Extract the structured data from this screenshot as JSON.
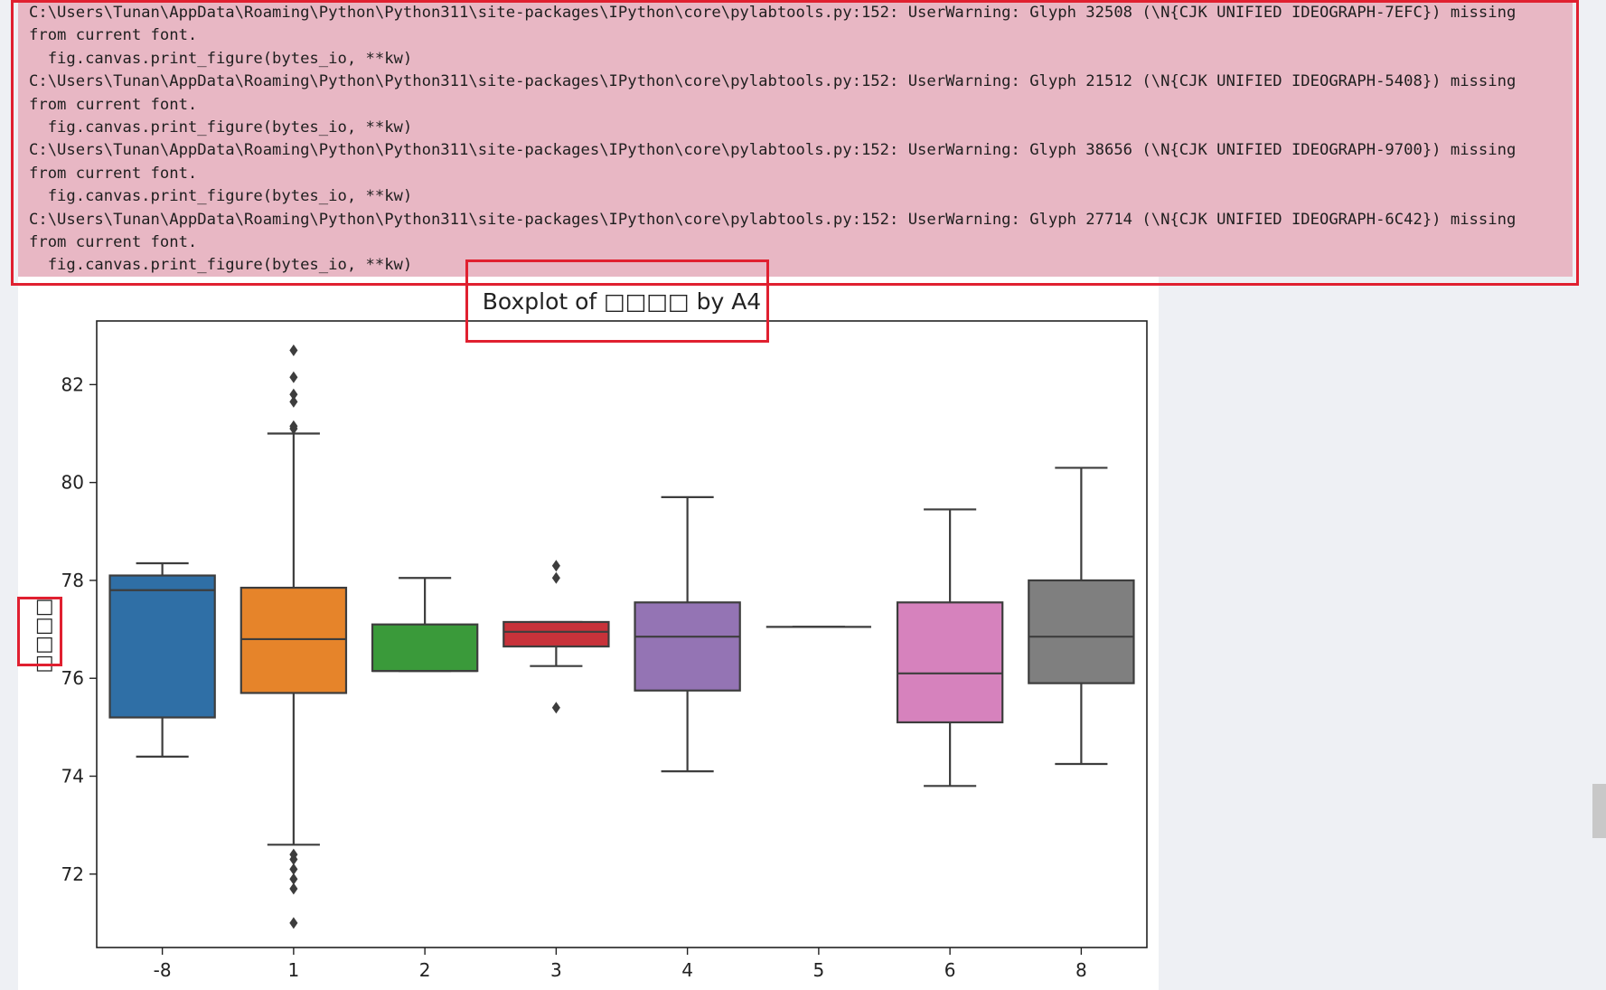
{
  "output": {
    "warning_lines": [
      "C:\\Users\\Tunan\\AppData\\Roaming\\Python\\Python311\\site-packages\\IPython\\core\\pylabtools.py:152: UserWarning: Glyph 32508 (\\N{CJK UNIFIED IDEOGRAPH-7EFC}) missing",
      "from current font.",
      "  fig.canvas.print_figure(bytes_io, **kw)",
      "C:\\Users\\Tunan\\AppData\\Roaming\\Python\\Python311\\site-packages\\IPython\\core\\pylabtools.py:152: UserWarning: Glyph 21512 (\\N{CJK UNIFIED IDEOGRAPH-5408}) missing",
      "from current font.",
      "  fig.canvas.print_figure(bytes_io, **kw)",
      "C:\\Users\\Tunan\\AppData\\Roaming\\Python\\Python311\\site-packages\\IPython\\core\\pylabtools.py:152: UserWarning: Glyph 38656 (\\N{CJK UNIFIED IDEOGRAPH-9700}) missing",
      "from current font.",
      "  fig.canvas.print_figure(bytes_io, **kw)",
      "C:\\Users\\Tunan\\AppData\\Roaming\\Python\\Python311\\site-packages\\IPython\\core\\pylabtools.py:152: UserWarning: Glyph 27714 (\\N{CJK UNIFIED IDEOGRAPH-6C42}) missing",
      "from current font.",
      "  fig.canvas.print_figure(bytes_io, **kw)"
    ],
    "highlight_color": "#e02030",
    "warning_bg_color": "#e8b7c4"
  },
  "chart_data": {
    "type": "boxplot",
    "title": "Boxplot of □□□□ by A4",
    "ylabel": "□□□□",
    "xlabel": "",
    "ylim": [
      70.5,
      83.3
    ],
    "yticks": [
      72,
      74,
      76,
      78,
      80,
      82
    ],
    "grid": false,
    "boxes": [
      {
        "category": "-8",
        "color": "#2f6fa6",
        "whislo": 74.4,
        "q1": 75.2,
        "med": 77.8,
        "q3": 78.1,
        "whishi": 78.35,
        "fliers": []
      },
      {
        "category": "1",
        "color": "#e6842a",
        "whislo": 72.6,
        "q1": 75.7,
        "med": 76.8,
        "q3": 77.85,
        "whishi": 81.0,
        "fliers": [
          82.7,
          82.15,
          81.8,
          81.65,
          81.15,
          81.1,
          72.4,
          72.3,
          72.1,
          71.9,
          71.7,
          71.0
        ]
      },
      {
        "category": "2",
        "color": "#3a9a3a",
        "whislo": 76.15,
        "q1": 76.15,
        "med": 76.15,
        "q3": 77.1,
        "whishi": 78.05,
        "fliers": []
      },
      {
        "category": "3",
        "color": "#c8323a",
        "whislo": 76.25,
        "q1": 76.65,
        "med": 76.95,
        "q3": 77.15,
        "whishi": 77.15,
        "fliers": [
          78.3,
          78.05,
          75.4
        ]
      },
      {
        "category": "4",
        "color": "#9474b4",
        "whislo": 74.1,
        "q1": 75.75,
        "med": 76.85,
        "q3": 77.55,
        "whishi": 79.7,
        "fliers": []
      },
      {
        "category": "5",
        "color": "#8c564b",
        "whislo": 77.05,
        "q1": 77.05,
        "med": 77.05,
        "q3": 77.05,
        "whishi": 77.05,
        "fliers": []
      },
      {
        "category": "6",
        "color": "#d682bd",
        "whislo": 73.8,
        "q1": 75.1,
        "med": 76.1,
        "q3": 77.55,
        "whishi": 79.45,
        "fliers": []
      },
      {
        "category": "8",
        "color": "#7f7f7f",
        "whislo": 74.25,
        "q1": 75.9,
        "med": 76.85,
        "q3": 78.0,
        "whishi": 80.3,
        "fliers": []
      }
    ]
  }
}
